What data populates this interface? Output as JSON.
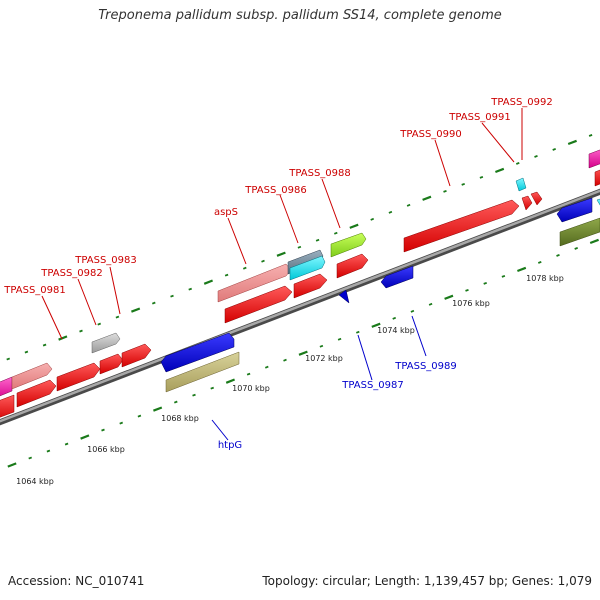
{
  "title": "Treponema pallidum subsp. pallidum SS14, complete genome",
  "footer": {
    "accession": "Accession: NC_010741",
    "stats": "Topology: circular; Length: 1,139,457 bp; Genes: 1,079"
  },
  "genome": {
    "visible_range_kbp": [
      1063,
      1080
    ],
    "tick_labels": [
      "1064 kbp",
      "1066 kbp",
      "1068 kbp",
      "1070 kbp",
      "1072 kbp",
      "1074 kbp",
      "1076 kbp",
      "1078 kbp"
    ]
  },
  "colors": {
    "backbone": "#808080",
    "forward_label": "#cc0000",
    "reverse_label": "#0000cc",
    "tick": "#1a7a1a"
  },
  "forward_labels": [
    "TPASS_0981",
    "TPASS_0982",
    "TPASS_0983",
    "aspS",
    "TPASS_0986",
    "TPASS_0988",
    "TPASS_0990",
    "TPASS_0991",
    "TPASS_0992"
  ],
  "reverse_labels": [
    "htpG",
    "TPASS_0987",
    "TPASS_0989"
  ]
}
